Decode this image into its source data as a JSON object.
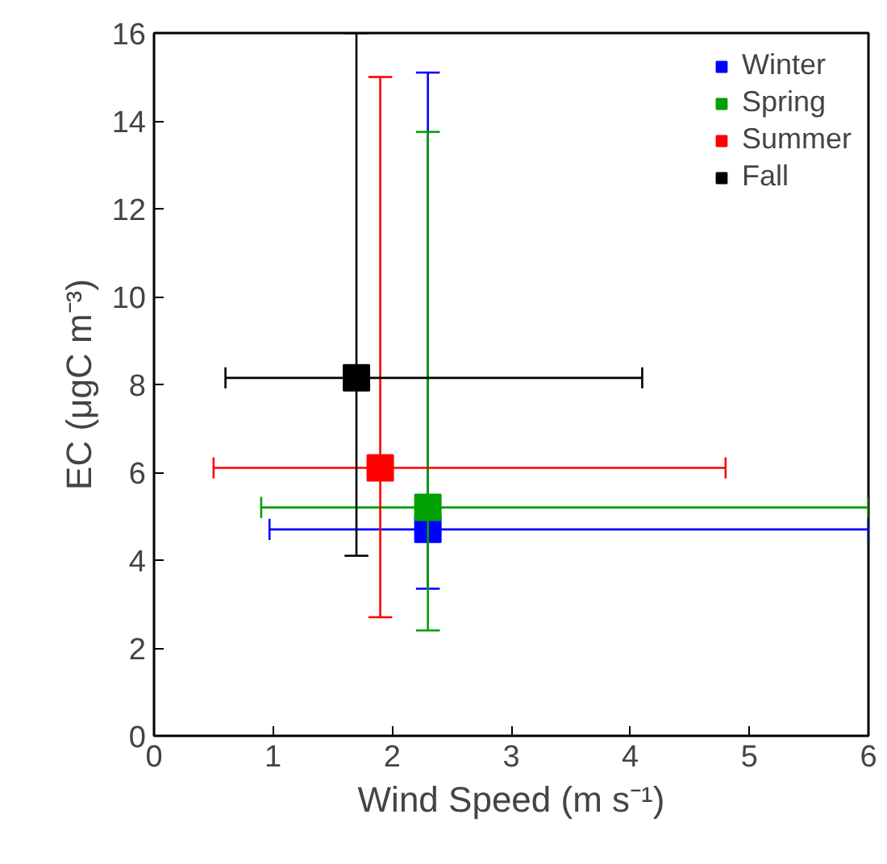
{
  "chart_data": {
    "type": "scatter",
    "xlabel": "Wind Speed (m s⁻¹)",
    "ylabel": "EC (μgC m⁻³)",
    "xlim": [
      0,
      6
    ],
    "ylim": [
      0,
      16
    ],
    "xticks": [
      0,
      1,
      2,
      3,
      4,
      5,
      6
    ],
    "yticks": [
      0,
      2,
      4,
      6,
      8,
      10,
      12,
      14,
      16
    ],
    "marker": "square",
    "legend": "top right",
    "grid": false,
    "series": [
      {
        "name": "Winter",
        "color": "#0000ff",
        "x": [
          2.3
        ],
        "values": [
          4.7
        ],
        "errors": [
          [
            3.35,
            15.1
          ]
        ],
        "xerrors": [
          [
            0.97,
            6
          ]
        ]
      },
      {
        "name": "Spring",
        "color": "#00a000",
        "x": [
          2.3
        ],
        "values": [
          5.2
        ],
        "errors": [
          [
            2.4,
            13.75
          ]
        ],
        "xerrors": [
          [
            0.9,
            6
          ]
        ]
      },
      {
        "name": "Summer",
        "color": "#ff0000",
        "x": [
          1.9
        ],
        "values": [
          6.1
        ],
        "errors": [
          [
            2.7,
            15.0
          ]
        ],
        "xerrors": [
          [
            0.5,
            4.8
          ]
        ]
      },
      {
        "name": "Fall",
        "color": "#000000",
        "x": [
          1.7
        ],
        "values": [
          8.15
        ],
        "errors": [
          [
            4.1,
            16
          ]
        ],
        "xerrors": [
          [
            0.6,
            4.1
          ]
        ]
      }
    ]
  }
}
